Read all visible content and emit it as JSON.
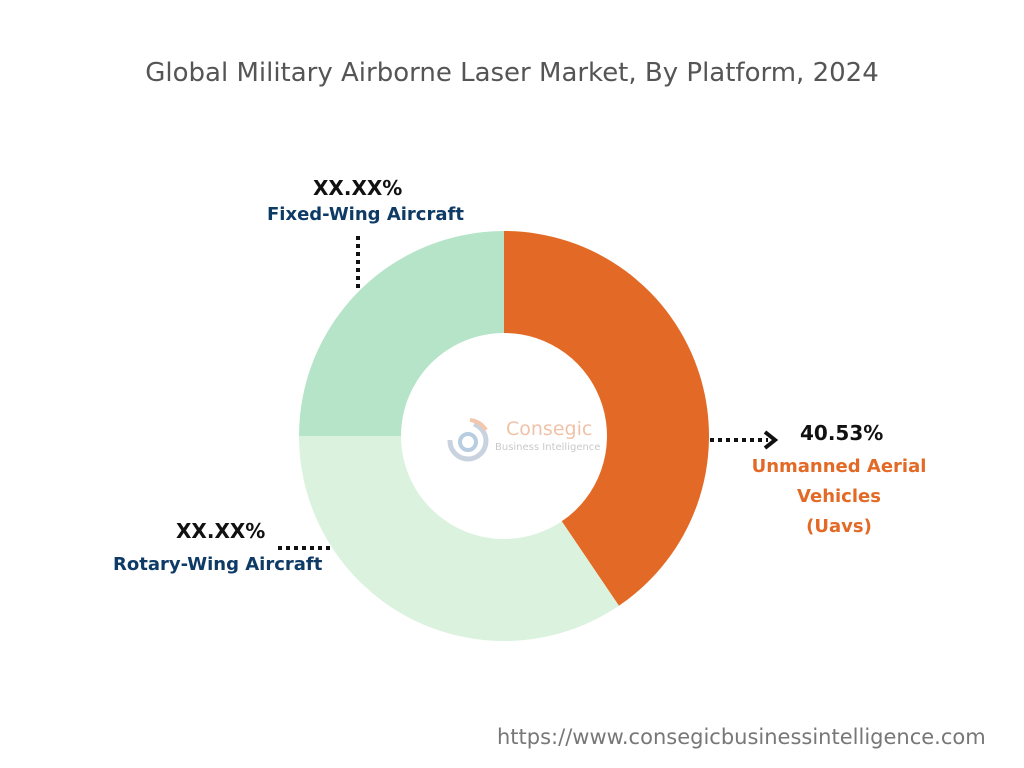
{
  "chart_data": {
    "type": "pie",
    "title": "Global Military Airborne Laser Market, By Platform, 2024",
    "slices": [
      {
        "name": "Unmanned Aerial Vehicles (Uavs)",
        "label_line1": "Unmanned Aerial Vehicles",
        "label_line2": "(Uavs)",
        "value": 40.53,
        "value_label": "40.53%",
        "color": "#E36A26",
        "label_color": "#E36A26"
      },
      {
        "name": "Rotary-Wing Aircraft",
        "value": 34.47,
        "value_label": "XX.XX%",
        "color": "#DAF2DE",
        "label_color": "#0E3A66"
      },
      {
        "name": "Fixed-Wing Aircraft",
        "value": 25.0,
        "value_label": "XX.XX%",
        "color": "#B5E4C8",
        "label_color": "#0E3A66"
      }
    ],
    "donut": true
  },
  "logo": {
    "name": "Consegic",
    "tagline": "Business Intelligence"
  },
  "footer": {
    "url": "https://www.consegicbusinessintelligence.com"
  }
}
